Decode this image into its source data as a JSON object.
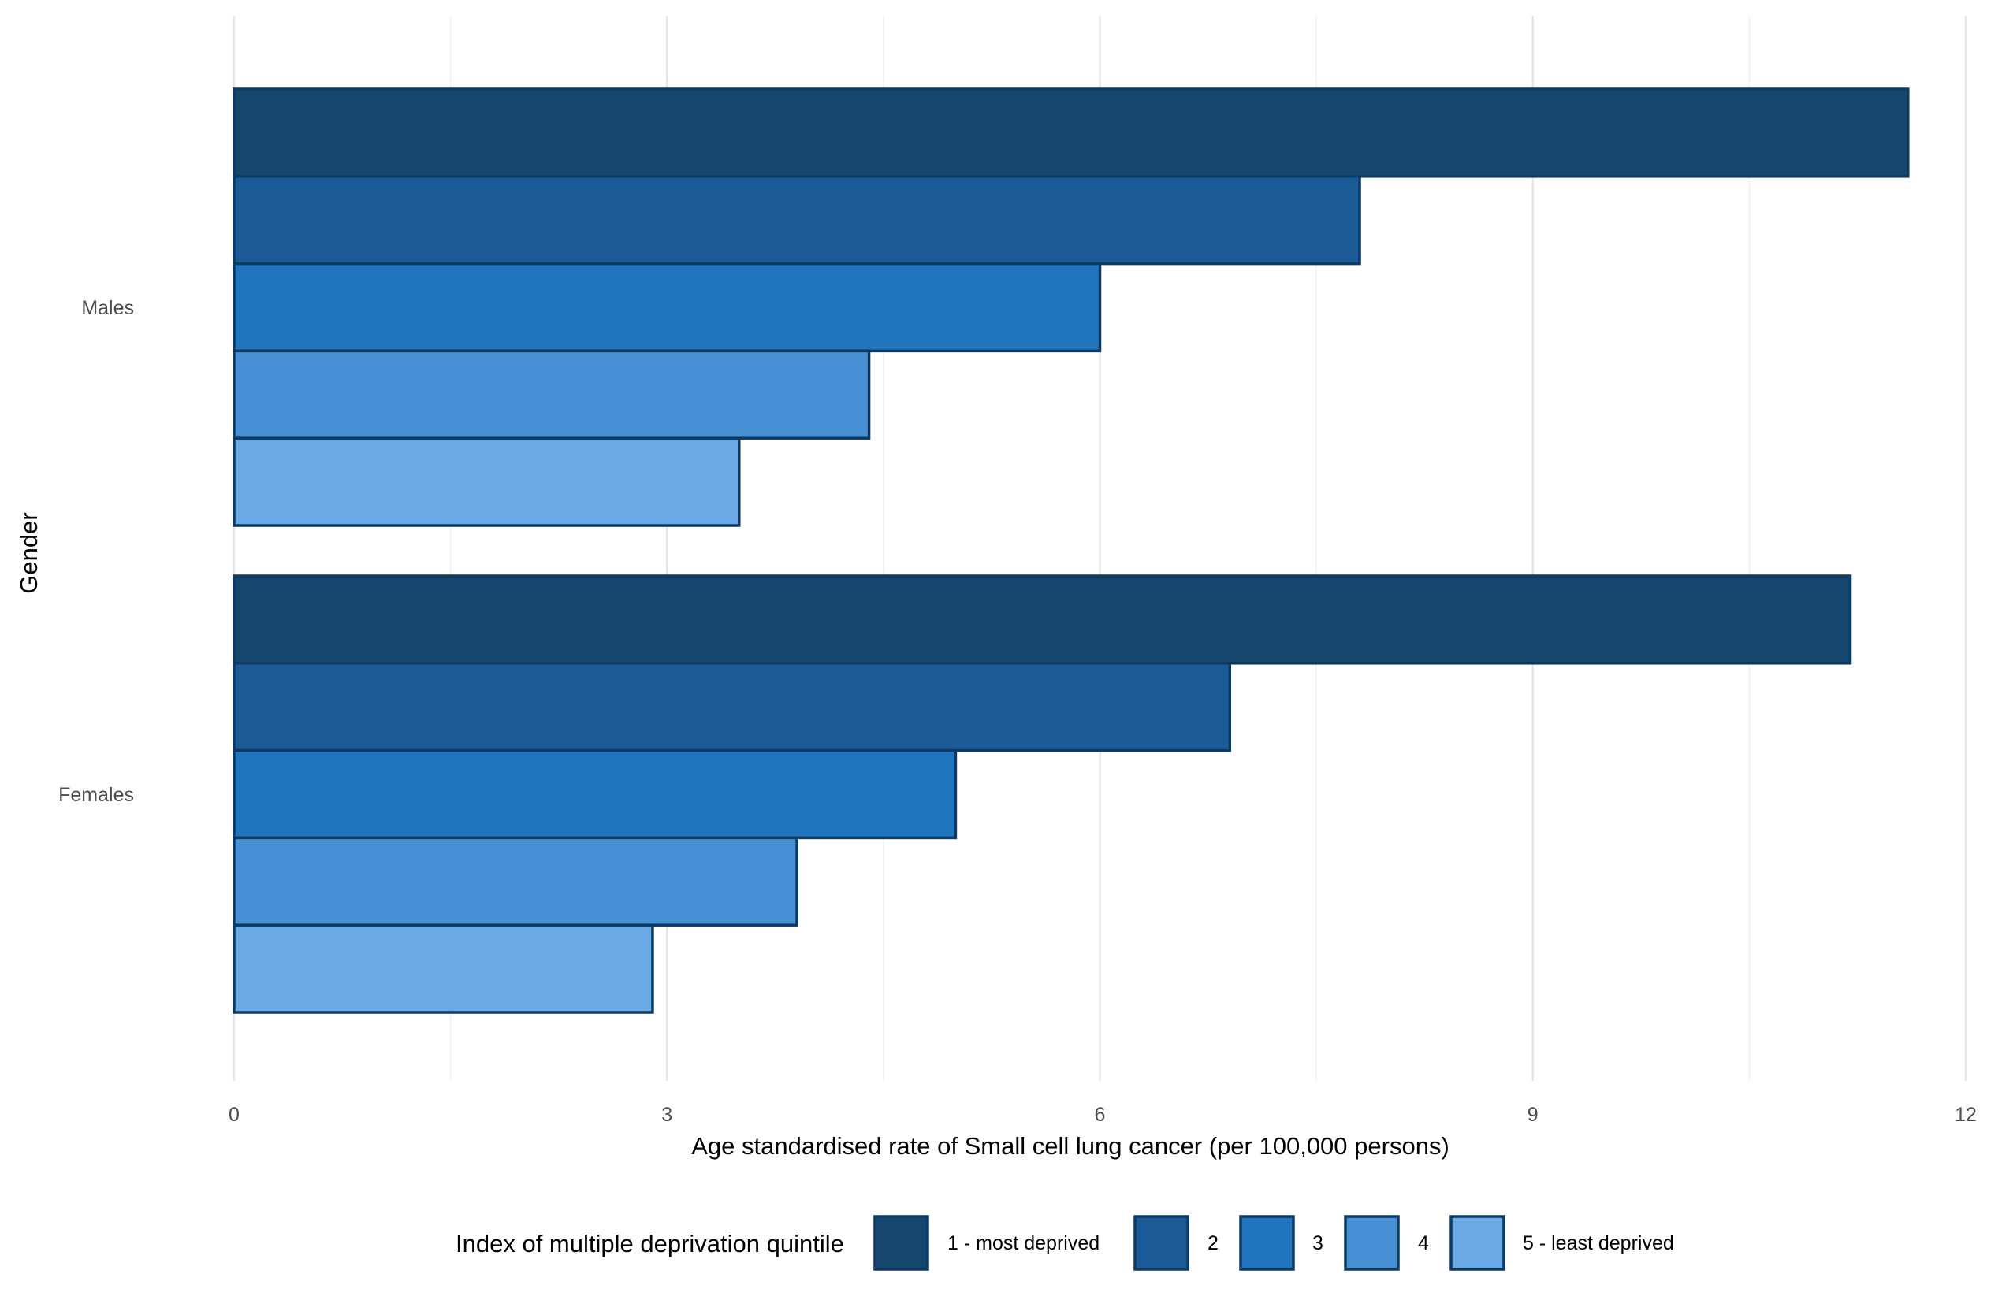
{
  "chart_data": {
    "type": "bar",
    "orientation": "horizontal",
    "categories": [
      "Males",
      "Females"
    ],
    "series": [
      {
        "name": "1 - most deprived",
        "values": [
          11.6,
          11.2
        ],
        "color": "#15466E"
      },
      {
        "name": "2",
        "values": [
          7.8,
          6.9
        ],
        "color": "#1A5B97"
      },
      {
        "name": "3",
        "values": [
          6.0,
          5.0
        ],
        "color": "#2174BE"
      },
      {
        "name": "4",
        "values": [
          4.4,
          3.9
        ],
        "color": "#468FD2"
      },
      {
        "name": "5 - least deprived",
        "values": [
          3.5,
          2.9
        ],
        "color": "#6AAAE4"
      }
    ],
    "xlabel": "Age standardised rate of Small cell lung cancer (per 100,000 persons)",
    "ylabel": "Gender",
    "xlim": [
      0,
      12
    ],
    "xticks": [
      0,
      3,
      6,
      9,
      12
    ],
    "xtick_labels": [
      "0",
      "3",
      "6",
      "9",
      "12"
    ],
    "grid": true,
    "bar_outline_color": "#0E3A62",
    "legend": {
      "title": "Index of multiple deprivation quintile",
      "position": "bottom"
    }
  }
}
